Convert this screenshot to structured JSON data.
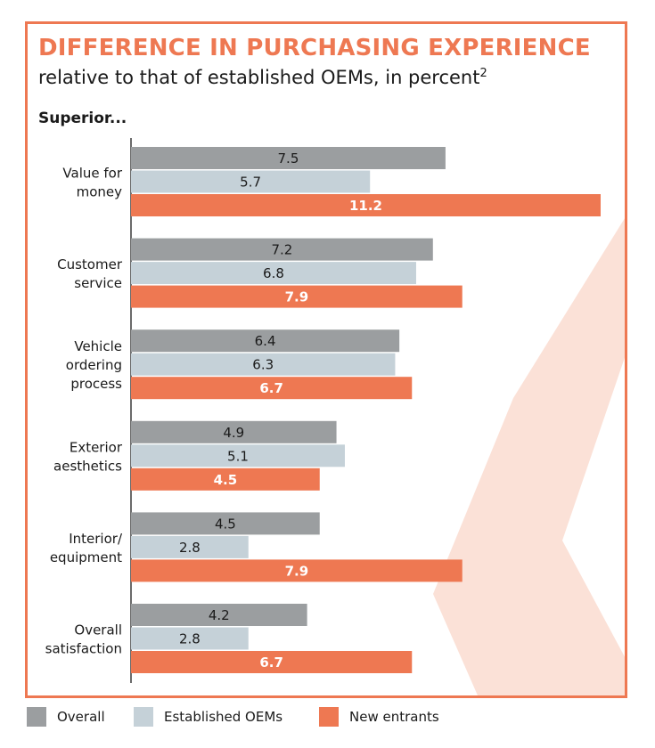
{
  "title": "DIFFERENCE IN PURCHASING EXPERIENCE",
  "subtitle": "relative to that of established OEMs, in percent",
  "subtitle_superscript": "2",
  "section_label": "Superior...",
  "colors": {
    "accent": "#ee7852",
    "overall": "#9b9ea0",
    "established": "#c5d1d8",
    "new_entrants": "#ee7852",
    "decor": "#fbe1d7"
  },
  "chart_data": {
    "type": "bar",
    "orientation": "horizontal",
    "categories": [
      [
        "Value for",
        "money"
      ],
      [
        "Customer",
        "service"
      ],
      [
        "Vehicle",
        "ordering",
        "process"
      ],
      [
        "Exterior",
        "aesthetics"
      ],
      [
        "Interior/",
        "equipment"
      ],
      [
        "Overall",
        "satisfaction"
      ]
    ],
    "series": [
      {
        "name": "Overall",
        "values": [
          7.5,
          7.2,
          6.4,
          4.9,
          4.5,
          4.2
        ]
      },
      {
        "name": "Established OEMs",
        "values": [
          5.7,
          6.8,
          6.3,
          5.1,
          2.8,
          2.8
        ]
      },
      {
        "name": "New entrants",
        "values": [
          11.2,
          7.9,
          6.7,
          4.5,
          7.9,
          6.7
        ]
      }
    ],
    "xlim": [
      0,
      11.5
    ],
    "grid": false,
    "legend": "bottom",
    "data_labels": true
  },
  "legend": [
    "Overall",
    "Established OEMs",
    "New entrants"
  ]
}
